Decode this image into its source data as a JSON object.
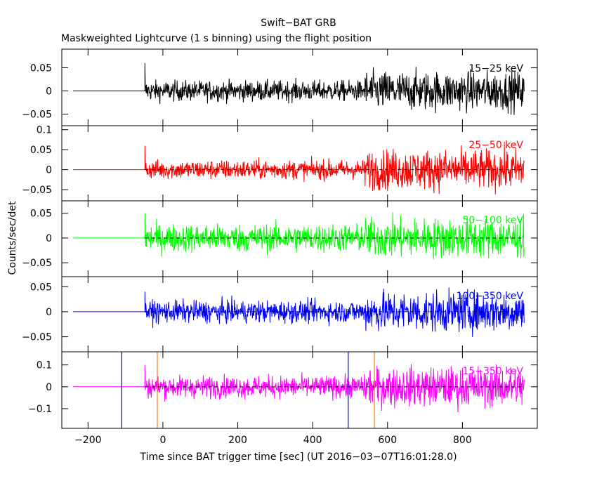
{
  "chart_data": {
    "type": "line",
    "title": "Swift−BAT GRB",
    "subtitle": "Maskweighted Lightcurve (1 s binning) using the flight position",
    "xlabel": "Time since BAT trigger time [sec] (UT 2016−03−07T16:01:28.0)",
    "ylabel": "Counts/sec/det",
    "xlim": [
      -270,
      1000
    ],
    "x_ticks": [
      -200,
      0,
      200,
      400,
      600,
      800
    ],
    "x_tick_labels": [
      "−200",
      "0",
      "200",
      "400",
      "600",
      "800"
    ],
    "data_start": -240,
    "burst_start": -48,
    "data_end": 965,
    "panels": [
      {
        "name": "15−25 keV",
        "color": "#000000",
        "ylim": [
          -0.075,
          0.09
        ],
        "y_ticks": [
          0.05,
          0,
          -0.05
        ],
        "y_tick_labels": [
          "0.05",
          "0",
          "−0.05"
        ],
        "noise_early": 0.011,
        "noise_late": 0.021,
        "late_start": 540,
        "spike": 0.06
      },
      {
        "name": "25−50 keV",
        "color": "#ff0000",
        "ylim": [
          -0.078,
          0.11
        ],
        "y_ticks": [
          0.1,
          0.05,
          0,
          -0.05
        ],
        "y_tick_labels": [
          "0.1",
          "0.05",
          "0",
          "−0.05"
        ],
        "noise_early": 0.012,
        "noise_late": 0.025,
        "late_start": 540,
        "spike": 0.06
      },
      {
        "name": "50−100 keV",
        "color": "#00ff00",
        "ylim": [
          -0.078,
          0.075
        ],
        "y_ticks": [
          0.05,
          0,
          -0.05
        ],
        "y_tick_labels": [
          "0.05",
          "0",
          "−0.05"
        ],
        "noise_early": 0.014,
        "noise_late": 0.02,
        "late_start": 540,
        "spike": 0.05
      },
      {
        "name": "100−350 keV",
        "color": "#0000ff",
        "ylim": [
          -0.08,
          0.07
        ],
        "y_ticks": [
          0.05,
          0,
          -0.05
        ],
        "y_tick_labels": [
          "0.05",
          "0",
          "−0.05"
        ],
        "noise_early": 0.011,
        "noise_late": 0.02,
        "late_start": 540,
        "spike": 0.04
      },
      {
        "name": "15−350 keV",
        "color": "#ff00ff",
        "ylim": [
          -0.19,
          0.16
        ],
        "y_ticks": [
          0.1,
          0,
          -0.1
        ],
        "y_tick_labels": [
          "0.1",
          "0",
          "−0.1"
        ],
        "noise_early": 0.025,
        "noise_late": 0.045,
        "late_start": 540,
        "spike": 0.1
      }
    ],
    "vertical_markers": [
      {
        "x": -110,
        "color": "#0000ff"
      },
      {
        "x": -15,
        "color": "#ff8000"
      },
      {
        "x": 495,
        "color": "#0000ff"
      },
      {
        "x": 565,
        "color": "#ff8000"
      }
    ],
    "dashed_zero_line": true,
    "grid": false
  }
}
